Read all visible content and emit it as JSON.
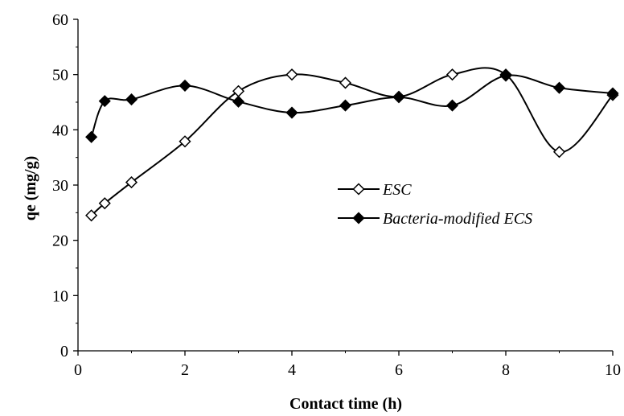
{
  "chart_data": {
    "type": "line",
    "title": "",
    "xlabel": "Contact time (h)",
    "ylabel": "qe (mg/g)",
    "xlim": [
      0,
      10
    ],
    "ylim": [
      0,
      60
    ],
    "xticks": [
      0,
      2,
      4,
      6,
      8,
      10
    ],
    "yticks": [
      0,
      10,
      20,
      30,
      40,
      50,
      60
    ],
    "grid": false,
    "legend_position": "center-right",
    "smooth": true,
    "series": [
      {
        "name": "ESC",
        "marker": "diamond-open",
        "color": "#000000",
        "x": [
          0.25,
          0.5,
          1,
          2,
          3,
          4,
          5,
          6,
          7,
          8,
          9,
          10
        ],
        "y": [
          24.5,
          26.7,
          30.5,
          37.9,
          47.0,
          50.0,
          48.5,
          46.0,
          50.0,
          50.0,
          36.0,
          46.3
        ]
      },
      {
        "name": "Bacteria-modified ECS",
        "marker": "diamond-filled",
        "color": "#000000",
        "x": [
          0.25,
          0.5,
          1,
          2,
          3,
          4,
          5,
          6,
          7,
          8,
          9,
          10
        ],
        "y": [
          38.7,
          45.2,
          45.5,
          48.0,
          45.1,
          43.1,
          44.4,
          45.9,
          44.4,
          49.8,
          47.6,
          46.6
        ]
      }
    ]
  }
}
